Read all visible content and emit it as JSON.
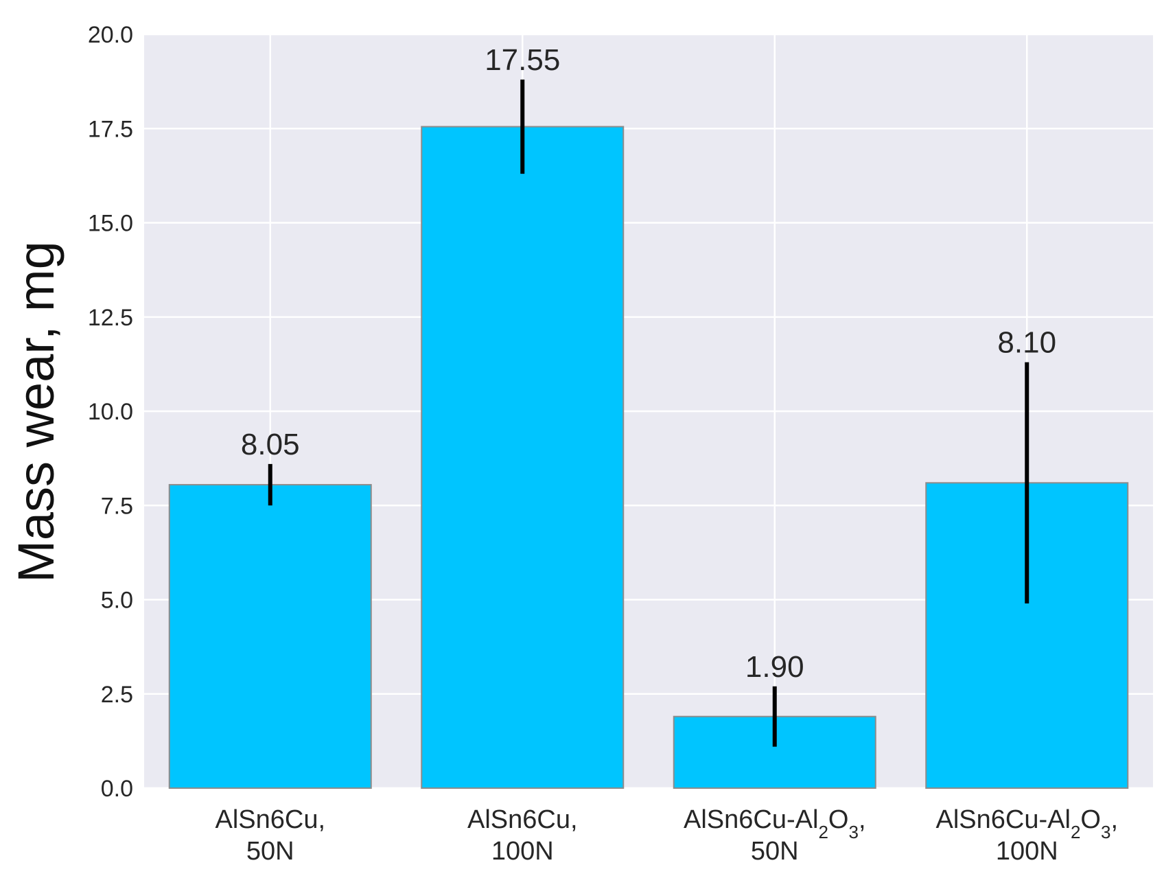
{
  "chart_data": {
    "type": "bar",
    "title": "",
    "xlabel": "",
    "ylabel": "Mass wear, mg",
    "ylim": [
      0,
      20
    ],
    "yticks": [
      "0.0",
      "2.5",
      "5.0",
      "7.5",
      "10.0",
      "12.5",
      "15.0",
      "17.5",
      "20.0"
    ],
    "grid": true,
    "categories": [
      {
        "line1": "AlSn6Cu,",
        "line2": "50N",
        "subscript": false
      },
      {
        "line1": "AlSn6Cu,",
        "line2": "100N",
        "subscript": false
      },
      {
        "line1": "AlSn6Cu-Al2O3,",
        "line2": "50N",
        "subscript": true
      },
      {
        "line1": "AlSn6Cu-Al2O3,",
        "line2": "100N",
        "subscript": true
      }
    ],
    "values": [
      8.05,
      17.55,
      1.9,
      8.1
    ],
    "value_labels": [
      "8.05",
      "17.55",
      "1.90",
      "8.10"
    ],
    "error": [
      0.55,
      1.25,
      0.8,
      3.2
    ],
    "bar_color": "#00C5FF",
    "bar_edge_color": "#8c8c8c",
    "plot_background": "#EAEAF2",
    "grid_color": "#ffffff",
    "error_color": "#000000"
  }
}
